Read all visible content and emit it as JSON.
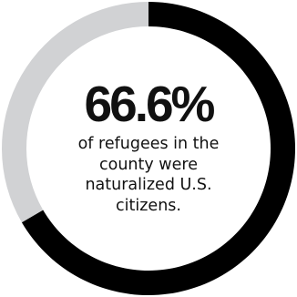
{
  "chart_data": {
    "type": "pie",
    "variant": "donut",
    "percentage_label": "66.6%",
    "caption": "of refugees in the county were naturalized U.S. citizens.",
    "slices": [
      {
        "label": "naturalized U.S. citizens",
        "value": 66.6,
        "color": "#000000"
      },
      {
        "label": "other",
        "value": 33.4,
        "color": "#d1d2d4"
      }
    ],
    "start_angle_deg": 0,
    "direction": "clockwise"
  }
}
